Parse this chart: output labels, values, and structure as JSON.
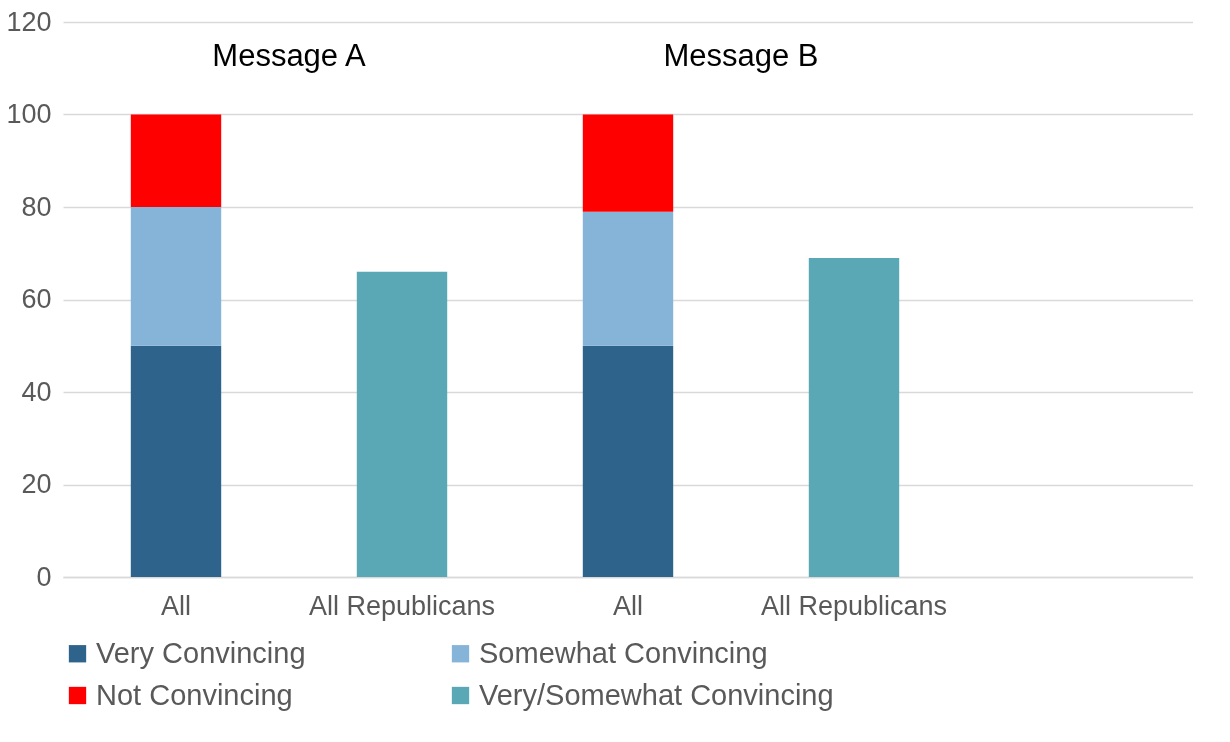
{
  "chart_data": {
    "type": "bar",
    "stacked": true,
    "categories": [
      "All",
      "All Republicans",
      "All",
      "All Republicans",
      null
    ],
    "series": [
      {
        "name": "Very Convincing",
        "color": "#2e638c",
        "values": [
          50,
          null,
          50,
          null,
          null
        ]
      },
      {
        "name": "Somewhat Convincing",
        "color": "#86b4d8",
        "values": [
          30,
          null,
          29,
          null,
          null
        ]
      },
      {
        "name": "Not Convincing",
        "color": "#ff0000",
        "values": [
          20,
          null,
          21,
          null,
          null
        ]
      },
      {
        "name": "Very/Somewhat Convincing",
        "color": "#5aa8b5",
        "values": [
          null,
          66,
          null,
          69,
          null
        ]
      }
    ],
    "annotations": [
      "Message A",
      "Message B"
    ],
    "ylim": [
      0,
      120
    ],
    "yticks": [
      0,
      20,
      40,
      60,
      80,
      100,
      120
    ],
    "grid": "y",
    "legend": "bottom"
  }
}
